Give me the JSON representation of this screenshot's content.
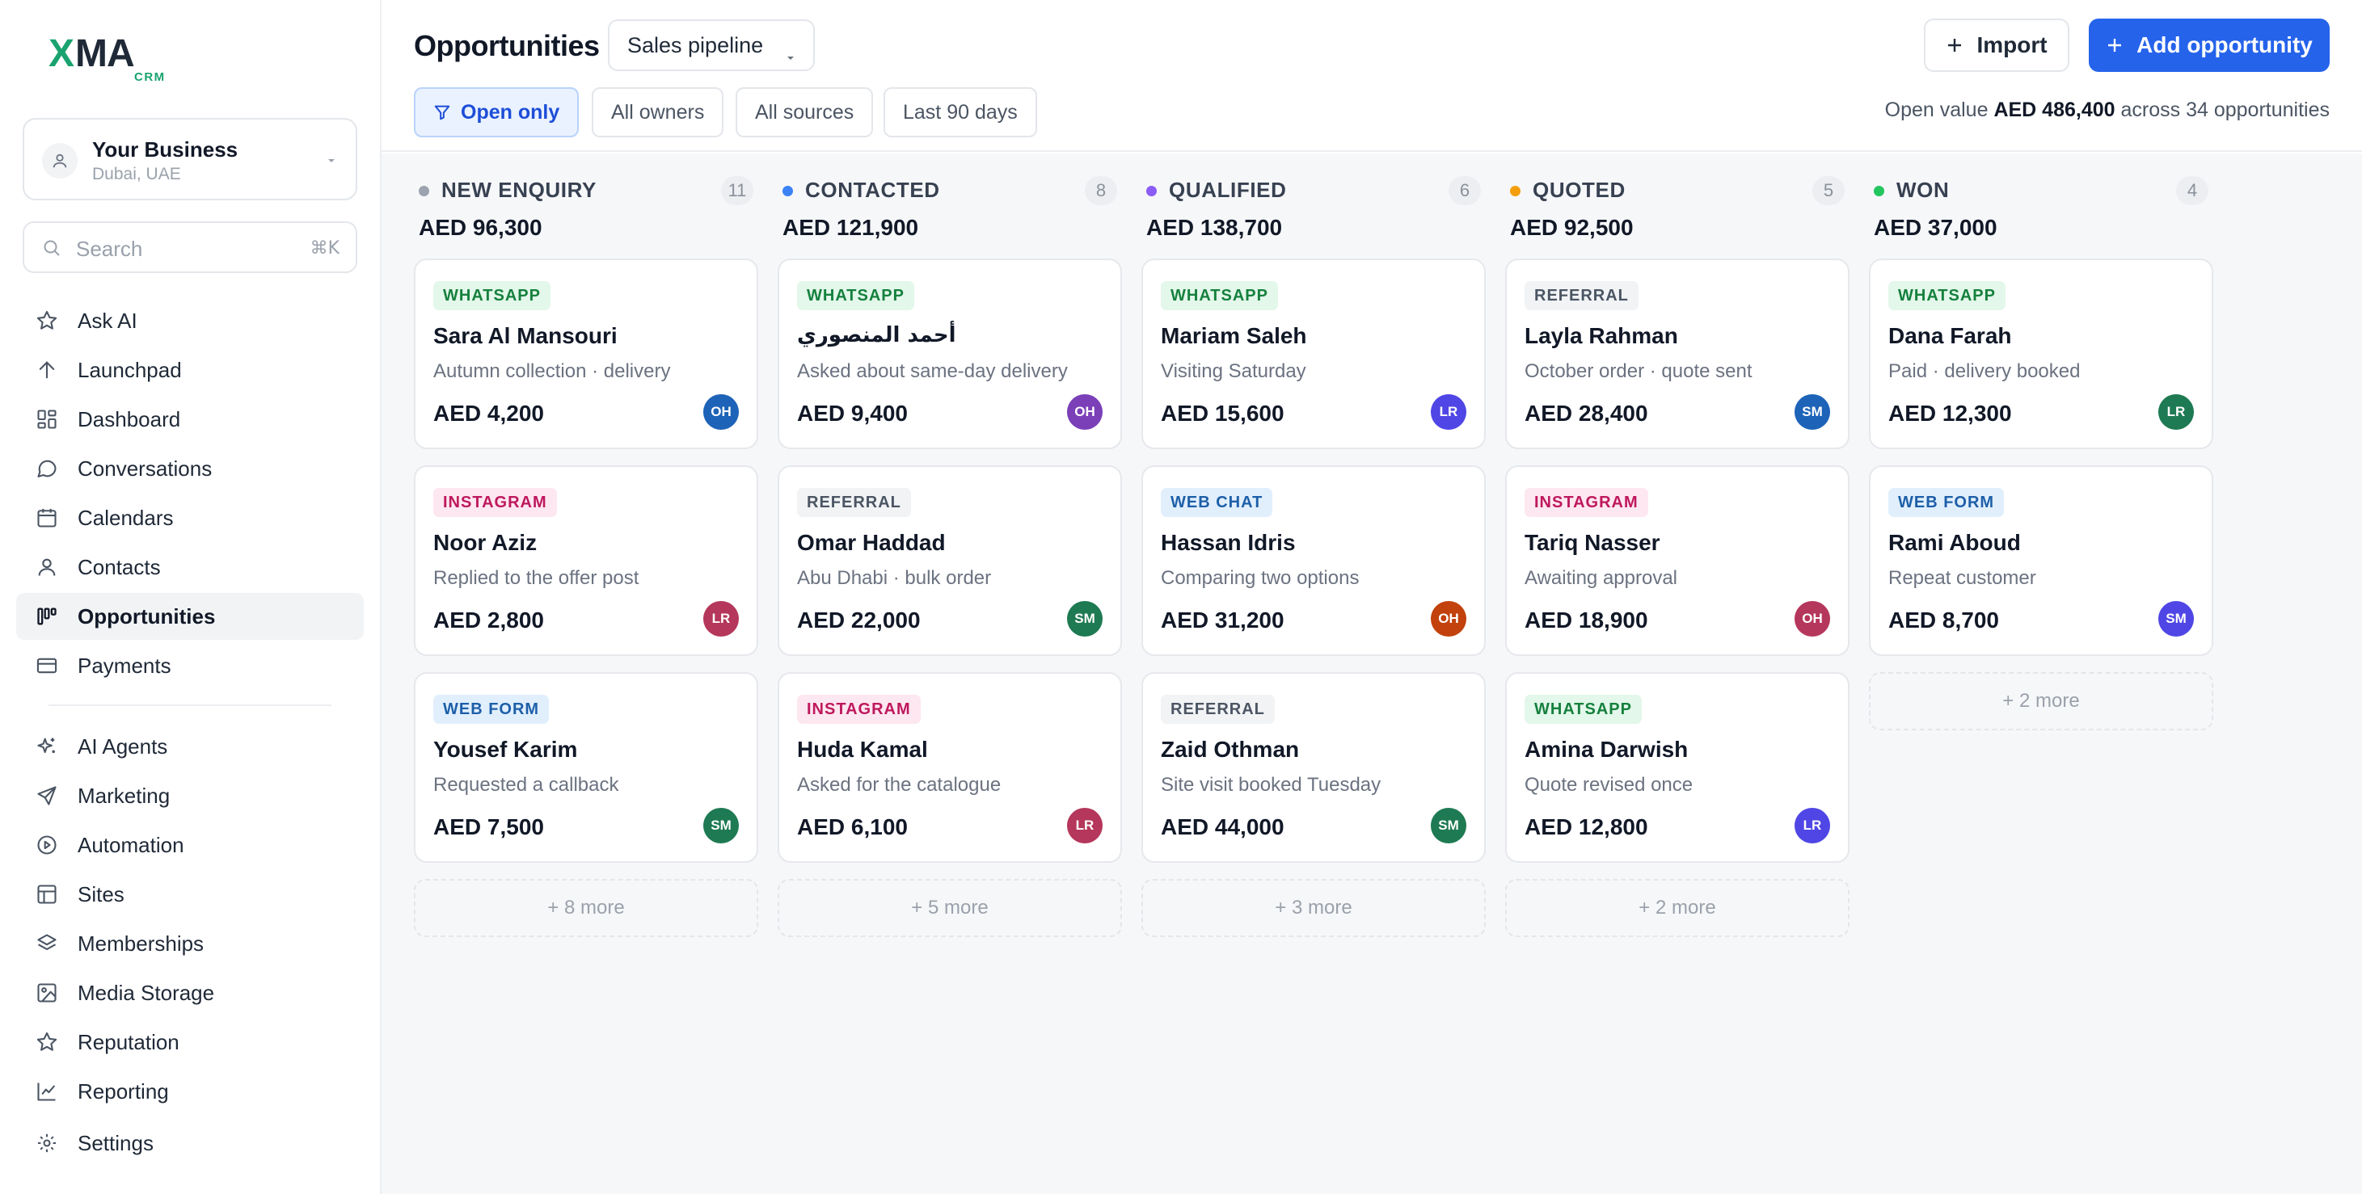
{
  "brand": {
    "name": "XMA",
    "sub": "CRM"
  },
  "business": {
    "name": "Your Business",
    "location": "Dubai, UAE"
  },
  "search": {
    "placeholder": "Search",
    "shortcut": "⌘K"
  },
  "nav": [
    {
      "label": "Ask AI",
      "icon": "sparkle-star-icon"
    },
    {
      "label": "Launchpad",
      "icon": "arrow-up-icon"
    },
    {
      "label": "Dashboard",
      "icon": "dashboard-grid-icon"
    },
    {
      "label": "Conversations",
      "icon": "chat-bubble-icon"
    },
    {
      "label": "Calendars",
      "icon": "calendar-icon"
    },
    {
      "label": "Contacts",
      "icon": "person-icon"
    },
    {
      "label": "Opportunities",
      "icon": "kanban-icon",
      "active": true
    },
    {
      "label": "Payments",
      "icon": "credit-card-icon"
    },
    {
      "label": "AI Agents",
      "icon": "ai-sparkles-icon"
    },
    {
      "label": "Marketing",
      "icon": "paper-plane-icon"
    },
    {
      "label": "Automation",
      "icon": "play-circle-icon"
    },
    {
      "label": "Sites",
      "icon": "layout-icon"
    },
    {
      "label": "Memberships",
      "icon": "layers-icon"
    },
    {
      "label": "Media Storage",
      "icon": "image-icon"
    },
    {
      "label": "Reputation",
      "icon": "star-icon"
    },
    {
      "label": "Reporting",
      "icon": "line-chart-icon"
    },
    {
      "label": "Settings",
      "icon": "gear-icon"
    }
  ],
  "header": {
    "title": "Opportunities",
    "pipeline": "Sales pipeline",
    "import_label": "Import",
    "add_label": "Add opportunity"
  },
  "filters": {
    "chips": [
      "Open only",
      "All owners",
      "All sources",
      "Last 90 days"
    ],
    "open_value_prefix": "Open value",
    "open_value": "AED 486,400",
    "open_value_suffix": "across 34 opportunities"
  },
  "colors": {
    "accent": "#2563eb",
    "new_enquiry": "#9ca3af",
    "contacted": "#3b82f6",
    "qualified": "#8b5cf6",
    "quoted": "#f59e0b",
    "won": "#22c55e"
  },
  "columns": [
    {
      "name": "NEW ENQUIRY",
      "count": "11",
      "total": "AED 96,300",
      "dot": "#9ca3af",
      "cards": [
        {
          "tag": "WHATSAPP",
          "tagType": "whatsapp",
          "name": "Sara Al Mansouri",
          "sub": "Autumn collection · delivery",
          "value": "AED 4,200",
          "owner": "OH",
          "ownerColor": "#1d63b8"
        },
        {
          "tag": "INSTAGRAM",
          "tagType": "instagram",
          "name": "Noor Aziz",
          "sub": "Replied to the offer post",
          "value": "AED 2,800",
          "owner": "LR",
          "ownerColor": "#b5375b"
        },
        {
          "tag": "WEB FORM",
          "tagType": "webform",
          "name": "Yousef Karim",
          "sub": "Requested a callback",
          "value": "AED 7,500",
          "owner": "SM",
          "ownerColor": "#1e7a52"
        }
      ],
      "more": "+ 8 more"
    },
    {
      "name": "CONTACTED",
      "count": "8",
      "total": "AED 121,900",
      "dot": "#3b82f6",
      "cards": [
        {
          "tag": "WHATSAPP",
          "tagType": "whatsapp",
          "name": "أحمد المنصوري",
          "sub": "Asked about same-day delivery",
          "value": "AED 9,400",
          "owner": "OH",
          "ownerColor": "#7b3fb8",
          "rtl": true
        },
        {
          "tag": "REFERRAL",
          "tagType": "referral",
          "name": "Omar Haddad",
          "sub": "Abu Dhabi · bulk order",
          "value": "AED 22,000",
          "owner": "SM",
          "ownerColor": "#1e7a52"
        },
        {
          "tag": "INSTAGRAM",
          "tagType": "instagram",
          "name": "Huda Kamal",
          "sub": "Asked for the catalogue",
          "value": "AED 6,100",
          "owner": "LR",
          "ownerColor": "#b5375b"
        }
      ],
      "more": "+ 5 more"
    },
    {
      "name": "QUALIFIED",
      "count": "6",
      "total": "AED 138,700",
      "dot": "#8b5cf6",
      "cards": [
        {
          "tag": "WHATSAPP",
          "tagType": "whatsapp",
          "name": "Mariam Saleh",
          "sub": "Visiting Saturday",
          "value": "AED 15,600",
          "owner": "LR",
          "ownerColor": "#4f46e5"
        },
        {
          "tag": "WEB CHAT",
          "tagType": "webchat",
          "name": "Hassan Idris",
          "sub": "Comparing two options",
          "value": "AED 31,200",
          "owner": "OH",
          "ownerColor": "#c2410c"
        },
        {
          "tag": "REFERRAL",
          "tagType": "referral",
          "name": "Zaid Othman",
          "sub": "Site visit booked Tuesday",
          "value": "AED 44,000",
          "owner": "SM",
          "ownerColor": "#1e7a52"
        }
      ],
      "more": "+ 3 more"
    },
    {
      "name": "QUOTED",
      "count": "5",
      "total": "AED 92,500",
      "dot": "#f59e0b",
      "cards": [
        {
          "tag": "REFERRAL",
          "tagType": "referral",
          "name": "Layla Rahman",
          "sub": "October order · quote sent",
          "value": "AED 28,400",
          "owner": "SM",
          "ownerColor": "#1d63b8"
        },
        {
          "tag": "INSTAGRAM",
          "tagType": "instagram",
          "name": "Tariq Nasser",
          "sub": "Awaiting approval",
          "value": "AED 18,900",
          "owner": "OH",
          "ownerColor": "#b5375b"
        },
        {
          "tag": "WHATSAPP",
          "tagType": "whatsapp",
          "name": "Amina Darwish",
          "sub": "Quote revised once",
          "value": "AED 12,800",
          "owner": "LR",
          "ownerColor": "#4f46e5"
        }
      ],
      "more": "+ 2 more"
    },
    {
      "name": "WON",
      "count": "4",
      "total": "AED 37,000",
      "dot": "#22c55e",
      "cards": [
        {
          "tag": "WHATSAPP",
          "tagType": "whatsapp",
          "name": "Dana Farah",
          "sub": "Paid · delivery booked",
          "value": "AED 12,300",
          "owner": "LR",
          "ownerColor": "#1e7a52"
        },
        {
          "tag": "WEB FORM",
          "tagType": "webform",
          "name": "Rami Aboud",
          "sub": "Repeat customer",
          "value": "AED 8,700",
          "owner": "SM",
          "ownerColor": "#4f46e5"
        }
      ],
      "more": "+ 2 more"
    }
  ]
}
